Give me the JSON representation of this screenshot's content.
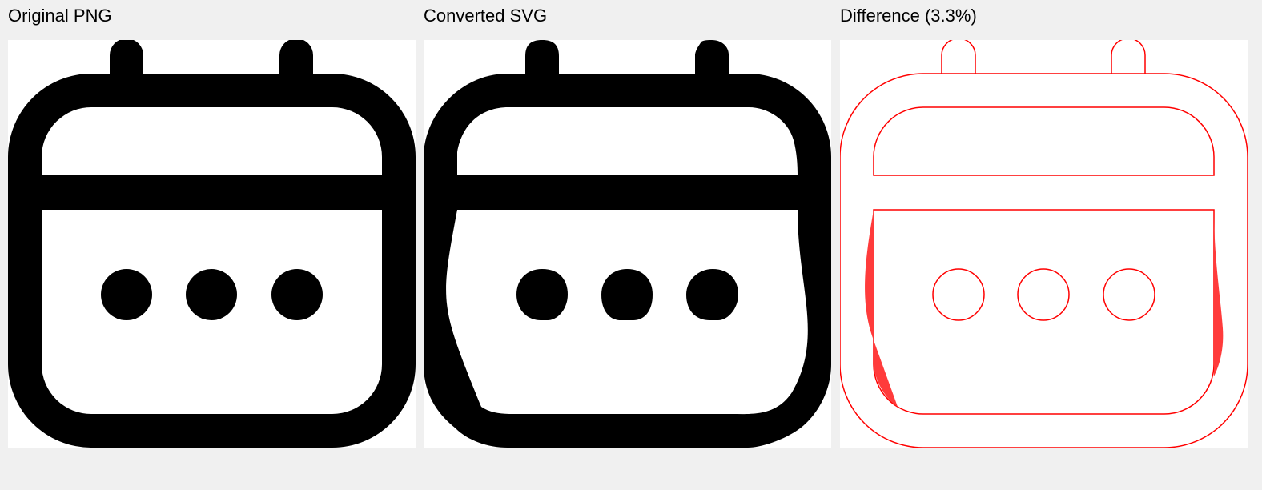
{
  "panels": [
    {
      "title": "Original PNG",
      "icon": "calendar-more-icon"
    },
    {
      "title": "Converted SVG",
      "icon": "calendar-more-icon"
    },
    {
      "title": "Difference (3.3%)",
      "icon": "calendar-more-icon"
    }
  ],
  "colors": {
    "background": "#f0f0f0",
    "panel": "#ffffff",
    "icon_fill": "#000000",
    "diff_outline": "#ff0000",
    "diff_fill": "#ff3b3b"
  }
}
